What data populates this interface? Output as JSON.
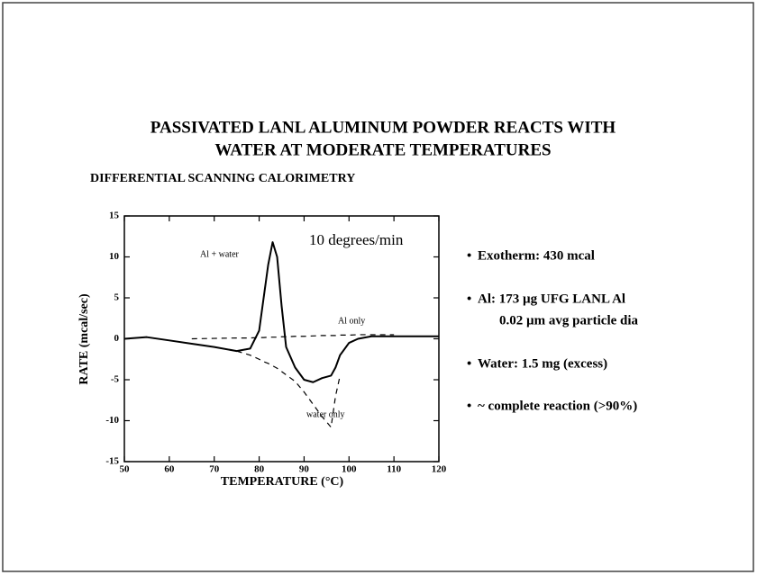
{
  "chart_data": {
    "type": "line",
    "title": [
      "PASSIVATED LANL ALUMINUM POWDER REACTS WITH",
      "WATER AT MODERATE TEMPERATURES"
    ],
    "subtitle": "DIFFERENTIAL SCANNING CALORIMETRY",
    "x_label": "TEMPERATURE (°C)",
    "y_label": "RATE (mcal/sec)",
    "annotation": "10 degrees/min",
    "x": [
      50,
      55,
      60,
      65,
      70,
      75,
      78,
      80,
      81,
      82,
      83,
      84,
      85,
      86,
      88,
      90,
      92,
      94,
      96,
      97,
      98,
      100,
      102,
      105,
      110,
      115,
      120
    ],
    "series": [
      {
        "name": "Al + water",
        "color": "#000000",
        "dash": false,
        "values": [
          0,
          0.2,
          -0.2,
          -0.6,
          -1,
          -1.5,
          -1.2,
          1,
          5,
          9,
          11.8,
          10,
          4,
          -1,
          -3.5,
          -5,
          -5.3,
          -4.8,
          -4.5,
          -3.5,
          -2,
          -0.5,
          0,
          0.3,
          0.3,
          0.3,
          0.3
        ]
      },
      {
        "name": "Al only",
        "color": "#000000",
        "dash": true,
        "values": [
          null,
          null,
          null,
          0,
          0.05,
          0.1,
          0.1,
          0.15,
          0.15,
          0.2,
          0.2,
          0.2,
          0.25,
          0.25,
          0.3,
          0.3,
          0.35,
          0.4,
          0.4,
          0.4,
          0.45,
          0.45,
          0.5,
          0.5,
          0.5,
          null,
          null
        ]
      },
      {
        "name": "water only",
        "color": "#000000",
        "dash": true,
        "values": [
          null,
          null,
          null,
          null,
          null,
          -1.5,
          -2,
          -2.5,
          -2.8,
          -3,
          -3.3,
          -3.6,
          -4,
          -4.4,
          -5.2,
          -6.5,
          -8,
          -9.5,
          -10.8,
          -7,
          -4.5,
          null,
          null,
          null,
          null,
          null,
          null
        ]
      }
    ],
    "xlim": [
      50,
      120
    ],
    "xticks": [
      50,
      60,
      70,
      80,
      90,
      100,
      110,
      120
    ],
    "ylim": [
      -15,
      15
    ],
    "yticks": [
      -15,
      -10,
      -5,
      0,
      5,
      10,
      15
    ]
  },
  "bullets": [
    [
      "Exotherm: 430 mcal"
    ],
    [
      "Al:  173 µg UFG LANL Al",
      "0.02 µm avg particle dia"
    ],
    [
      "Water:  1.5 mg (excess)"
    ],
    [
      "~ complete reaction  (>90%)"
    ]
  ]
}
